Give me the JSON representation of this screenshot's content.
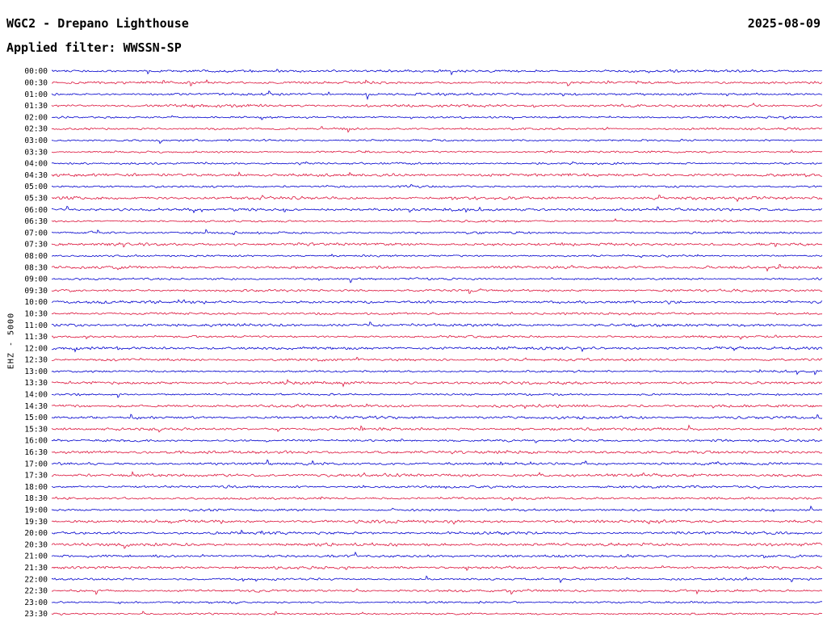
{
  "header": {
    "title": "WGC2 - Drepano Lighthouse",
    "date": "2025-08-09",
    "filter_label": "Applied filter: WWSSN-SP"
  },
  "y_axis_label": "EHZ - 5000",
  "colors": {
    "blue": "#0000cd",
    "red": "#dc143c",
    "text": "#000000",
    "background": "#ffffff"
  },
  "chart_data": {
    "type": "line",
    "subtype": "helicorder-seismogram",
    "title": "WGC2 - Drepano Lighthouse",
    "subtitle": "Applied filter: WWSSN-SP",
    "date": "2025-08-09",
    "channel_scale_label": "EHZ - 5000",
    "minutes_per_row": 30,
    "rows": 48,
    "row_times": [
      "00:00",
      "00:30",
      "01:00",
      "01:30",
      "02:00",
      "02:30",
      "03:00",
      "03:30",
      "04:00",
      "04:30",
      "05:00",
      "05:30",
      "06:00",
      "06:30",
      "07:00",
      "07:30",
      "08:00",
      "08:30",
      "09:00",
      "09:30",
      "10:00",
      "10:30",
      "11:00",
      "11:30",
      "12:00",
      "12:30",
      "13:00",
      "13:30",
      "14:00",
      "14:30",
      "15:00",
      "15:30",
      "16:00",
      "16:30",
      "17:00",
      "17:30",
      "18:00",
      "18:30",
      "19:00",
      "19:30",
      "20:00",
      "20:30",
      "21:00",
      "21:30",
      "22:00",
      "22:30",
      "23:00",
      "23:30"
    ],
    "row_colors": [
      "blue",
      "red",
      "blue",
      "red",
      "blue",
      "red",
      "blue",
      "red",
      "blue",
      "red",
      "blue",
      "red",
      "blue",
      "red",
      "blue",
      "red",
      "blue",
      "red",
      "blue",
      "red",
      "blue",
      "red",
      "blue",
      "red",
      "blue",
      "red",
      "blue",
      "red",
      "blue",
      "red",
      "blue",
      "red",
      "blue",
      "red",
      "blue",
      "red",
      "blue",
      "red",
      "blue",
      "red",
      "blue",
      "red",
      "blue",
      "red",
      "blue",
      "red",
      "blue",
      "red"
    ],
    "signal": "continuous background microseismic noise on every trace with sparse small transient spikes; no large events or event labels",
    "amplitude_axis": "unlabeled",
    "time_axis": "unlabeled; each row spans 30 minutes, labels at left give row start time"
  }
}
